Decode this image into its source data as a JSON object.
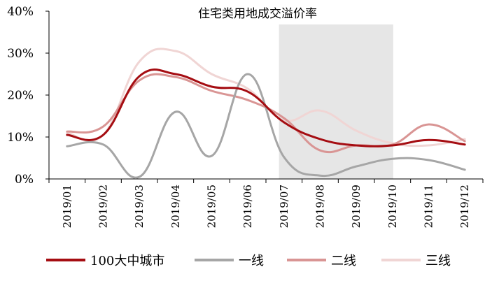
{
  "chart_data": {
    "type": "line",
    "title": "住宅类用地成交溢价率",
    "categories": [
      "2019/01",
      "2019/02",
      "2019/03",
      "2019/04",
      "2019/05",
      "2019/06",
      "2019/07",
      "2019/08",
      "2019/09",
      "2019/10",
      "2019/11",
      "2019/12"
    ],
    "y_ticks": [
      "0%",
      "10%",
      "20%",
      "30%",
      "40%"
    ],
    "ylim": [
      0,
      40
    ],
    "y_unit": "%",
    "grid": false,
    "legend_position": "bottom",
    "highlight_region": {
      "from": "2019/07",
      "to": "2019/10",
      "color": "#e6e6e6"
    },
    "series": [
      {
        "name": "100大中城市",
        "color": "#a50d12",
        "values": [
          10.5,
          10.5,
          24.5,
          25.0,
          22.0,
          20.8,
          13.5,
          9.5,
          8.0,
          8.0,
          9.3,
          8.2
        ]
      },
      {
        "name": "一线",
        "color": "#a6a6a6",
        "values": [
          7.8,
          8.2,
          0.5,
          16.0,
          5.5,
          25.0,
          5.2,
          0.8,
          3.0,
          4.8,
          4.5,
          2.2
        ]
      },
      {
        "name": "二线",
        "color": "#d99594",
        "values": [
          11.3,
          12.5,
          23.5,
          24.3,
          21.0,
          18.8,
          14.5,
          6.8,
          8.0,
          8.2,
          13.0,
          9.0
        ]
      },
      {
        "name": "三线",
        "color": "#f0d5d4",
        "values": [
          11.0,
          10.5,
          28.0,
          30.5,
          25.0,
          21.5,
          14.0,
          16.3,
          11.5,
          8.5,
          8.0,
          9.5
        ]
      }
    ]
  }
}
